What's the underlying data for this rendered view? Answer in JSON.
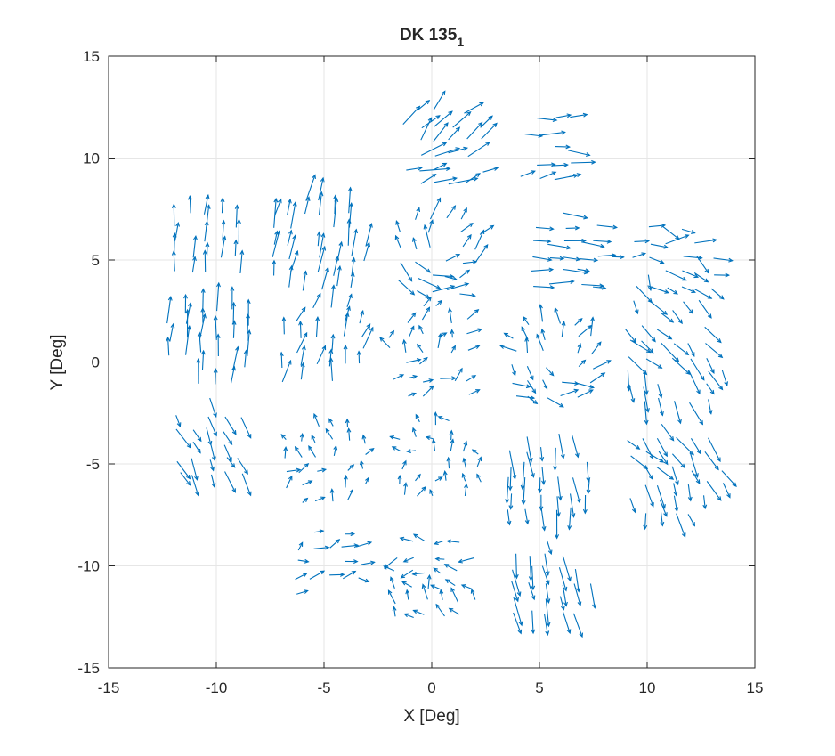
{
  "chart_data": {
    "type": "quiver",
    "title": "DK 135",
    "title_subscript": "1",
    "xlabel": "X [Deg]",
    "ylabel": "Y [Deg]",
    "xlim": [
      -15,
      15
    ],
    "ylim": [
      -15,
      15
    ],
    "xticks": [
      -15,
      -10,
      -5,
      0,
      5,
      10,
      15
    ],
    "yticks": [
      -15,
      -10,
      -5,
      0,
      5,
      10,
      15
    ],
    "xtick_labels": [
      "-15",
      "-10",
      "-5",
      "0",
      "5",
      "10",
      "15"
    ],
    "ytick_labels": [
      "-15",
      "-10",
      "-5",
      "0",
      "5",
      "10",
      "15"
    ],
    "grid": true,
    "arrow_color": "#0072BD",
    "tiles": [
      {
        "center": [
          -10.5,
          5.8
        ],
        "radius": 2.1,
        "angle_deg": 85,
        "length": 0.9,
        "swirl": 0,
        "spread": 8
      },
      {
        "center": [
          -5.5,
          5.5
        ],
        "radius": 2.6,
        "angle_deg": 80,
        "length": 1.1,
        "swirl": 0,
        "spread": 10
      },
      {
        "center": [
          0.3,
          5.2
        ],
        "radius": 2.5,
        "angle_deg": 40,
        "length": 0.9,
        "swirl": 0.8,
        "spread": 25
      },
      {
        "center": [
          6.2,
          5.2
        ],
        "radius": 2.2,
        "angle_deg": -3,
        "length": 0.9,
        "swirl": 0,
        "spread": 10
      },
      {
        "center": [
          11.0,
          4.5
        ],
        "radius": 2.3,
        "angle_deg": -30,
        "length": 0.9,
        "swirl": 0.3,
        "spread": 35
      },
      {
        "center": [
          0.5,
          10.5
        ],
        "radius": 2.5,
        "angle_deg": 35,
        "length": 1.1,
        "swirl": 0.2,
        "spread": 15
      },
      {
        "center": [
          5.5,
          10.3
        ],
        "radius": 2.0,
        "angle_deg": 5,
        "length": 0.9,
        "swirl": 0,
        "spread": 20
      },
      {
        "center": [
          -10.5,
          0.6
        ],
        "radius": 2.4,
        "angle_deg": 88,
        "length": 1.1,
        "swirl": 0,
        "spread": 10
      },
      {
        "center": [
          -5.2,
          0.8
        ],
        "radius": 2.4,
        "angle_deg": 75,
        "length": 0.9,
        "swirl": 0,
        "spread": 20
      },
      {
        "center": [
          0.0,
          0.3
        ],
        "radius": 2.6,
        "angle_deg": 45,
        "length": 0.6,
        "swirl": 0.5,
        "spread": 40
      },
      {
        "center": [
          5.5,
          0.0
        ],
        "radius": 2.4,
        "angle_deg": 30,
        "length": 0.7,
        "swirl": 0.9,
        "spread": 45
      },
      {
        "center": [
          11.0,
          0.0
        ],
        "radius": 2.6,
        "angle_deg": -60,
        "length": 1.0,
        "swirl": 0.2,
        "spread": 15
      },
      {
        "center": [
          -10.3,
          -4.0
        ],
        "radius": 2.2,
        "angle_deg": -65,
        "length": 0.9,
        "swirl": 0,
        "spread": 12
      },
      {
        "center": [
          -5.0,
          -5.0
        ],
        "radius": 2.5,
        "angle_deg": 75,
        "length": 0.5,
        "swirl": 0.3,
        "spread": 40
      },
      {
        "center": [
          0.2,
          -5.0
        ],
        "radius": 2.3,
        "angle_deg": 100,
        "length": 0.5,
        "swirl": 0.5,
        "spread": 45
      },
      {
        "center": [
          5.3,
          -5.5
        ],
        "radius": 2.4,
        "angle_deg": -85,
        "length": 1.1,
        "swirl": 0,
        "spread": 10
      },
      {
        "center": [
          11.0,
          -5.5
        ],
        "radius": 2.6,
        "angle_deg": -65,
        "length": 1.0,
        "swirl": 0.2,
        "spread": 18
      },
      {
        "center": [
          -5.0,
          -10.0
        ],
        "radius": 2.0,
        "angle_deg": 10,
        "length": 0.6,
        "swirl": 0.2,
        "spread": 40
      },
      {
        "center": [
          0.0,
          -10.8
        ],
        "radius": 2.4,
        "angle_deg": 150,
        "length": 0.6,
        "swirl": 0.4,
        "spread": 40
      },
      {
        "center": [
          5.3,
          -10.8
        ],
        "radius": 2.2,
        "angle_deg": -80,
        "length": 1.1,
        "swirl": 0,
        "spread": 10
      }
    ]
  }
}
